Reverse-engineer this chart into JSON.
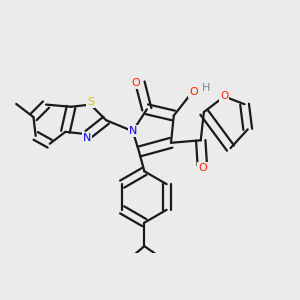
{
  "bg_color": "#ebebeb",
  "bond_color": "#1a1a1a",
  "bond_width": 1.6,
  "atom_colors": {
    "N": "#0000ee",
    "S": "#cccc00",
    "O": "#ff2200",
    "OH": "#778888",
    "C": "#1a1a1a"
  },
  "figsize": [
    3.0,
    3.0
  ],
  "dpi": 100
}
